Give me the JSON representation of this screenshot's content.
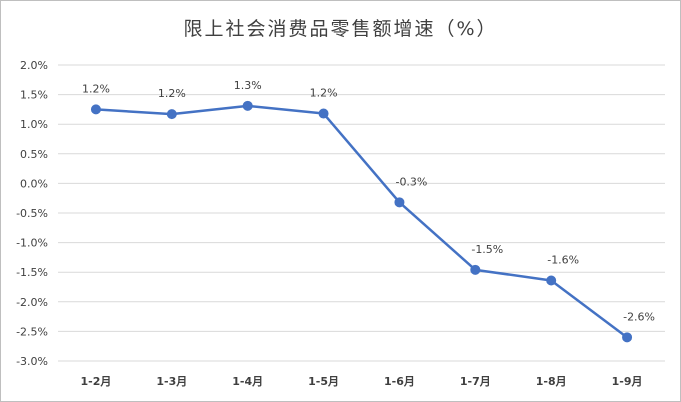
{
  "chart_data": {
    "type": "line",
    "title": "限上社会消费品零售额增速（%）",
    "categories": [
      "1-2月",
      "1-3月",
      "1-4月",
      "1-5月",
      "1-6月",
      "1-7月",
      "1-8月",
      "1-9月"
    ],
    "series": [
      {
        "values": [
          1.25,
          1.17,
          1.31,
          1.18,
          -0.32,
          -1.46,
          -1.64,
          -2.6
        ],
        "labels": [
          "1.2%",
          "1.2%",
          "1.3%",
          "1.2%",
          "-0.3%",
          "-1.5%",
          "-1.6%",
          "-2.6%"
        ],
        "color": "#4472c4"
      }
    ],
    "ylim": [
      -3.0,
      2.0
    ],
    "yticks": [
      2.0,
      1.5,
      1.0,
      0.5,
      0.0,
      -0.5,
      -1.0,
      -1.5,
      -2.0,
      -2.5,
      -3.0
    ],
    "ytick_labels": [
      "2.0%",
      "1.5%",
      "1.0%",
      "0.5%",
      "0.0%",
      "-0.5%",
      "-1.0%",
      "-1.5%",
      "-2.0%",
      "-2.5%",
      "-3.0%"
    ],
    "grid": true,
    "gridline_color": "#d9d9d9"
  }
}
